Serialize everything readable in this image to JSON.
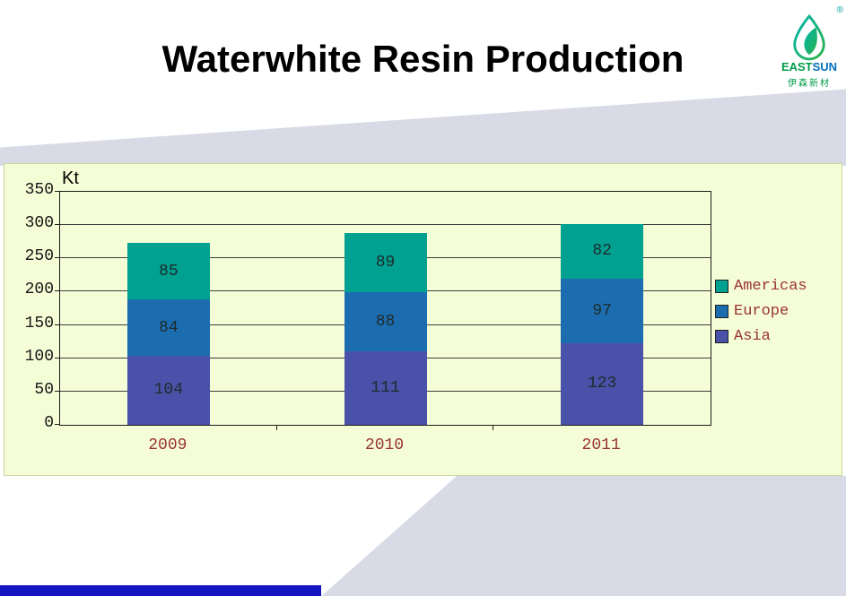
{
  "slide": {
    "title": "Waterwhite Resin Production"
  },
  "logo": {
    "registered": "®",
    "brand_east": "EAST",
    "brand_sun": "SUN",
    "chinese_name": "伊森新材"
  },
  "chart_data": {
    "type": "bar",
    "stacked": true,
    "unit_label": "Kt",
    "categories": [
      "2009",
      "2010",
      "2011"
    ],
    "series": [
      {
        "name": "Asia",
        "color": "#4a51a8",
        "values": [
          104,
          111,
          123
        ]
      },
      {
        "name": "Europe",
        "color": "#1c6db0",
        "values": [
          84,
          88,
          97
        ]
      },
      {
        "name": "Americas",
        "color": "#00a191",
        "values": [
          85,
          89,
          82
        ]
      }
    ],
    "legend_order": [
      "Americas",
      "Europe",
      "Asia"
    ],
    "legend_position": "right",
    "y_ticks": [
      0,
      50,
      100,
      150,
      200,
      250,
      300,
      350
    ],
    "ylim": [
      0,
      350
    ],
    "grid": true
  },
  "style": {
    "plot_bg": "#f5fdd6",
    "bg_diagonal": "#d8dae6",
    "accent_blue_strip": "#1414c0",
    "tick_label_color": "#151515",
    "category_label_color": "#993333",
    "legend_text_color": "#993333",
    "value_label_color": "#1e2b2b",
    "gridline_color": "#3d3d3d"
  }
}
